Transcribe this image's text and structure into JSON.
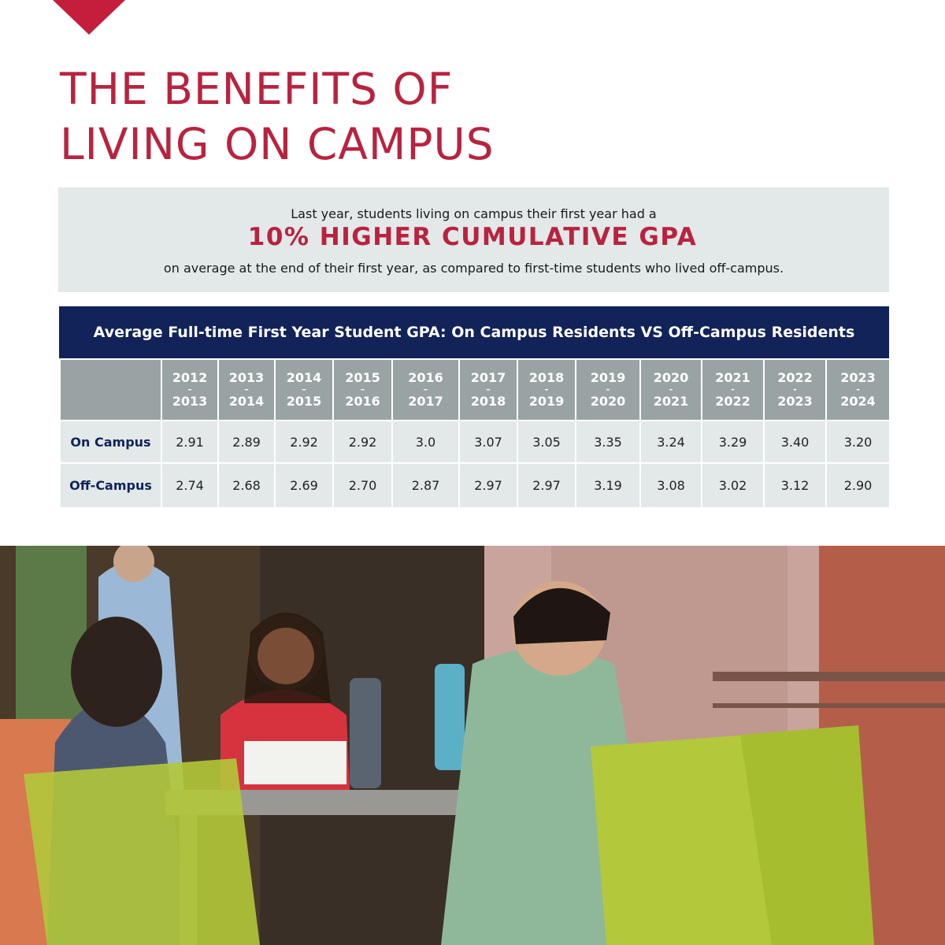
{
  "title": {
    "line1": "THE BENEFITS OF",
    "line2": "LIVING ON CAMPUS"
  },
  "highlight": {
    "line1": "Last year, students living on campus their first year had a",
    "headline": "10% HIGHER CUMULATIVE GPA",
    "line3": "on average at the end of their first year, as compared to first-time students who lived off-campus."
  },
  "table": {
    "title": "Average Full-time First Year Student GPA: On Campus Residents VS Off-Campus Residents",
    "columns": [
      {
        "top": "2012",
        "sep": "–",
        "bottom": "2013"
      },
      {
        "top": "2013",
        "sep": "–",
        "bottom": "2014"
      },
      {
        "top": "2014",
        "sep": "–",
        "bottom": "2015"
      },
      {
        "top": "2015",
        "sep": "–",
        "bottom": "2016"
      },
      {
        "top": "2016",
        "sep": "–",
        "bottom": "2017"
      },
      {
        "top": "2017",
        "sep": "–",
        "bottom": "2018"
      },
      {
        "top": "2018",
        "sep": "-",
        "bottom": "2019"
      },
      {
        "top": "2019",
        "sep": "-",
        "bottom": "2020"
      },
      {
        "top": "2020",
        "sep": "-",
        "bottom": "2021"
      },
      {
        "top": "2021",
        "sep": "-",
        "bottom": "2022"
      },
      {
        "top": "2022",
        "sep": "-",
        "bottom": "2023"
      },
      {
        "top": "2023",
        "sep": "-",
        "bottom": "2024"
      }
    ],
    "rows": [
      {
        "label": "On Campus",
        "values": [
          "2.91",
          "2.89",
          "2.92",
          "2.92",
          "3.0",
          "3.07",
          "3.05",
          "3.35",
          "3.24",
          "3.29",
          "3.40",
          "3.20"
        ]
      },
      {
        "label": "Off-Campus",
        "values": [
          "2.74",
          "2.68",
          "2.69",
          "2.70",
          "2.87",
          "2.97",
          "2.97",
          "3.19",
          "3.08",
          "3.02",
          "3.12",
          "2.90"
        ]
      }
    ]
  },
  "colors": {
    "accent_red": "#b8233f",
    "navy": "#112358",
    "header_gray": "#9aa3a3",
    "cell_bg": "#e3e8e9"
  }
}
